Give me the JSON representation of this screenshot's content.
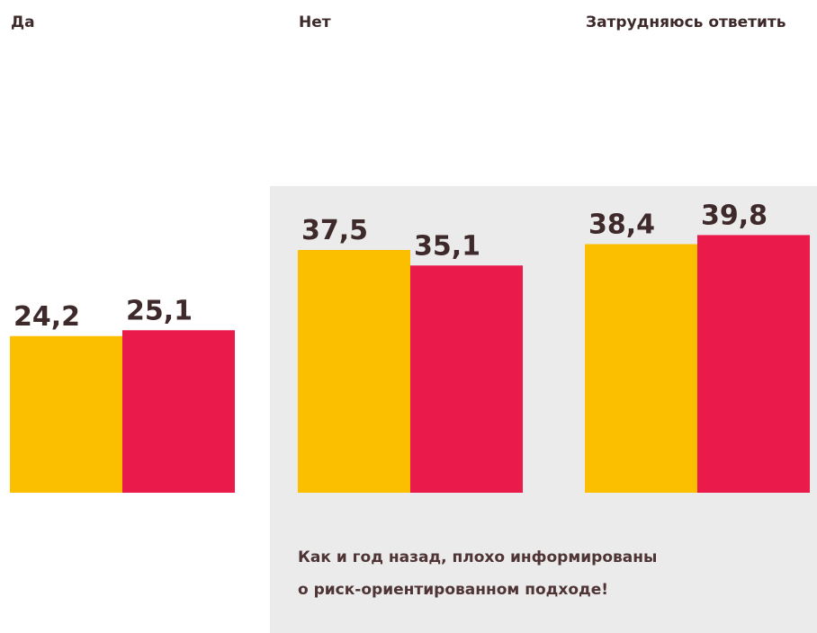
{
  "chart_data": {
    "type": "bar",
    "categories": [
      "Да",
      "Нет",
      "Затрудняюсь ответить"
    ],
    "series": [
      {
        "color": "#fcbf00",
        "values": [
          24.2,
          37.5,
          38.4
        ],
        "value_labels": [
          "24,2",
          "37,5",
          "38,4"
        ]
      },
      {
        "color": "#ea1a4b",
        "values": [
          25.1,
          35.1,
          39.8
        ],
        "value_labels": [
          "25,1",
          "35,1",
          "39,8"
        ]
      }
    ],
    "annotation": [
      "Как и год назад, плохо информированы",
      "о риск-ориентированном подходе!"
    ]
  }
}
